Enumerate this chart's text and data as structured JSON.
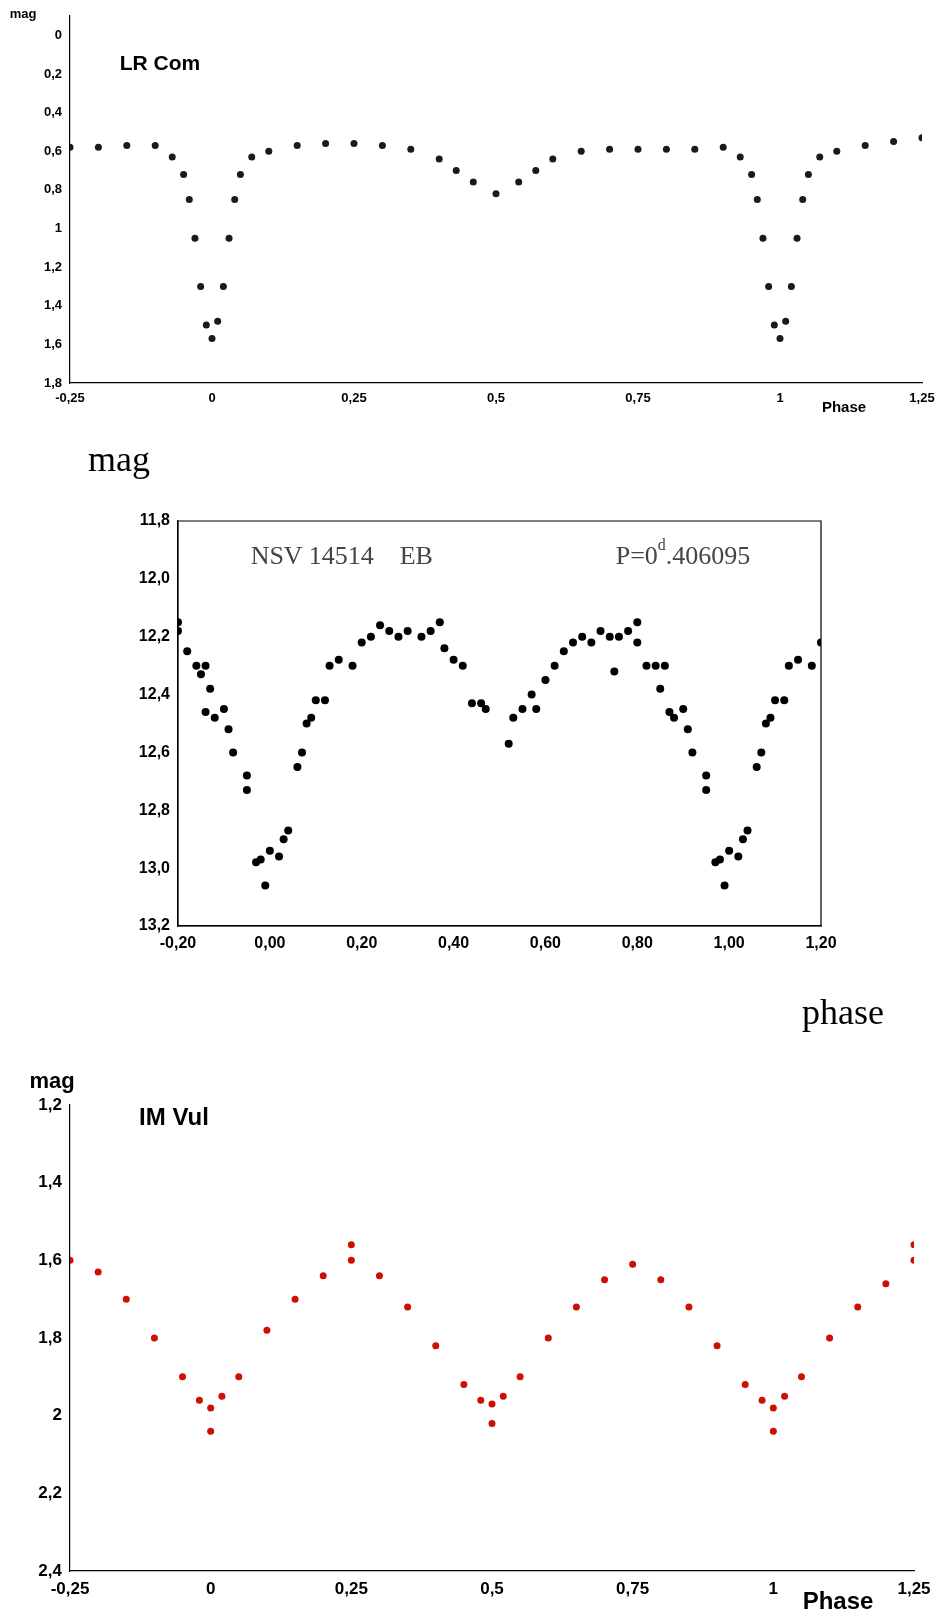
{
  "chart_data": [
    {
      "type": "scatter",
      "title": "LR Com",
      "ylabel": "mag",
      "xlabel": "Phase",
      "marker": "circle",
      "legend": false,
      "xlim": [
        -0.25,
        1.25
      ],
      "xticks": [
        {
          "value": -0.25,
          "label": "-0,25"
        },
        {
          "value": 0,
          "label": "0"
        },
        {
          "value": 0.25,
          "label": "0,25"
        },
        {
          "value": 0.5,
          "label": "0,5"
        },
        {
          "value": 0.75,
          "label": "0,75"
        },
        {
          "value": 1,
          "label": "1"
        },
        {
          "value": 1.25,
          "label": "1,25"
        }
      ],
      "ylim": [
        1.8,
        -0.1
      ],
      "yticks": [
        0,
        {
          "value": 0.2,
          "label": "0,2"
        },
        {
          "value": 0.4,
          "label": "0,4"
        },
        {
          "value": 0.6,
          "label": "0,6"
        },
        {
          "value": 0.8,
          "label": "0,8"
        },
        1,
        {
          "value": 1.2,
          "label": "1,2"
        },
        {
          "value": 1.4,
          "label": "1,4"
        },
        {
          "value": 1.6,
          "label": "1,6"
        },
        {
          "value": 1.8,
          "label": "1,8"
        }
      ],
      "series": [
        {
          "color": "#1a1a1a",
          "x": [
            -0.25,
            -0.2,
            -0.15,
            -0.1,
            -0.07,
            -0.05,
            -0.04,
            -0.03,
            -0.02,
            -0.01,
            0,
            0.01,
            0.02,
            0.03,
            0.04,
            0.05,
            0.07,
            0.1,
            0.15,
            0.2,
            0.25,
            0.3,
            0.35,
            0.4,
            0.43,
            0.46,
            0.5,
            0.54,
            0.57,
            0.6,
            0.65,
            0.7,
            0.75,
            0.8,
            0.85,
            0.9,
            0.93,
            0.95,
            0.96,
            0.97,
            0.98,
            0.99,
            1.0,
            1.01,
            1.02,
            1.03,
            1.04,
            1.05,
            1.07,
            1.1,
            1.15,
            1.2,
            1.25
          ],
          "values": [
            0.58,
            0.58,
            0.57,
            0.57,
            0.63,
            0.72,
            0.85,
            1.05,
            1.3,
            1.5,
            1.57,
            1.48,
            1.3,
            1.05,
            0.85,
            0.72,
            0.63,
            0.6,
            0.57,
            0.56,
            0.56,
            0.57,
            0.59,
            0.64,
            0.7,
            0.76,
            0.82,
            0.76,
            0.7,
            0.64,
            0.6,
            0.59,
            0.59,
            0.59,
            0.59,
            0.58,
            0.63,
            0.72,
            0.85,
            1.05,
            1.3,
            1.5,
            1.57,
            1.48,
            1.3,
            1.05,
            0.85,
            0.72,
            0.63,
            0.6,
            0.57,
            0.55,
            0.53
          ]
        }
      ]
    },
    {
      "type": "scatter",
      "title": "NSV 14514    EB",
      "annotations": [
        "P=0$^{d}$.406095"
      ],
      "ylabel": "mag",
      "xlabel": "phase",
      "marker": "circle",
      "legend": false,
      "xlim": [
        -0.2,
        1.2
      ],
      "xticks": [
        {
          "value": -0.2,
          "label": "-0,20"
        },
        {
          "value": 0,
          "label": "0,00"
        },
        {
          "value": 0.2,
          "label": "0,20"
        },
        {
          "value": 0.4,
          "label": "0,40"
        },
        {
          "value": 0.6,
          "label": "0,60"
        },
        {
          "value": 0.8,
          "label": "0,80"
        },
        {
          "value": 1,
          "label": "1,00"
        },
        {
          "value": 1.2,
          "label": "1,20"
        }
      ],
      "ylim": [
        13.2,
        11.8
      ],
      "yticks": [
        {
          "value": 11.8,
          "label": "11,8"
        },
        {
          "value": 12,
          "label": "12,0"
        },
        {
          "value": 12.2,
          "label": "12,2"
        },
        {
          "value": 12.4,
          "label": "12,4"
        },
        {
          "value": 12.6,
          "label": "12,6"
        },
        {
          "value": 12.8,
          "label": "12,8"
        },
        {
          "value": 13,
          "label": "13,0"
        },
        {
          "value": 13.2,
          "label": "13,2"
        }
      ],
      "series": [
        {
          "color": "#000000",
          "x": [
            -0.2,
            -0.2,
            -0.18,
            -0.16,
            -0.15,
            -0.14,
            -0.13,
            -0.14,
            -0.12,
            -0.1,
            -0.09,
            -0.08,
            -0.05,
            -0.05,
            -0.03,
            -0.02,
            0,
            -0.01,
            0.02,
            0.03,
            0.04,
            0.06,
            0.07,
            0.08,
            0.09,
            0.1,
            0.12,
            0.13,
            0.15,
            0.18,
            0.2,
            0.22,
            0.24,
            0.26,
            0.28,
            0.3,
            0.33,
            0.35,
            0.37,
            0.38,
            0.4,
            0.42,
            0.44,
            0.46,
            0.47,
            0.52,
            0.53,
            0.55,
            0.57,
            0.58,
            0.6,
            0.62,
            0.64,
            0.66,
            0.68,
            0.7,
            0.72,
            0.74,
            0.75,
            0.76,
            0.78,
            0.8,
            0.8,
            0.82,
            0.84,
            0.85,
            0.86,
            0.87,
            0.88,
            0.9,
            0.91,
            0.92,
            0.95,
            0.95,
            0.97,
            0.98,
            1.0,
            0.99,
            1.02,
            1.03,
            1.04,
            1.06,
            1.07,
            1.08,
            1.09,
            1.1,
            1.12,
            1.13,
            1.15,
            1.18,
            1.2
          ],
          "values": [
            12.15,
            12.18,
            12.25,
            12.3,
            12.33,
            12.3,
            12.38,
            12.46,
            12.48,
            12.45,
            12.52,
            12.6,
            12.68,
            12.73,
            12.98,
            12.97,
            12.94,
            13.06,
            12.96,
            12.9,
            12.87,
            12.65,
            12.6,
            12.5,
            12.48,
            12.42,
            12.42,
            12.3,
            12.28,
            12.3,
            12.22,
            12.2,
            12.16,
            12.18,
            12.2,
            12.18,
            12.2,
            12.18,
            12.15,
            12.24,
            12.28,
            12.3,
            12.43,
            12.43,
            12.45,
            12.57,
            12.48,
            12.45,
            12.4,
            12.45,
            12.35,
            12.3,
            12.25,
            12.22,
            12.2,
            12.22,
            12.18,
            12.2,
            12.32,
            12.2,
            12.18,
            12.15,
            12.22,
            12.3,
            12.3,
            12.38,
            12.3,
            12.46,
            12.48,
            12.45,
            12.52,
            12.6,
            12.68,
            12.73,
            12.98,
            12.97,
            12.94,
            13.06,
            12.96,
            12.9,
            12.87,
            12.65,
            12.6,
            12.5,
            12.48,
            12.42,
            12.42,
            12.3,
            12.28,
            12.3,
            12.22
          ]
        }
      ]
    },
    {
      "type": "scatter",
      "title": "IM Vul",
      "ylabel": "mag",
      "xlabel": "Phase",
      "marker": "circle",
      "legend": false,
      "xlim": [
        -0.25,
        1.25
      ],
      "xticks": [
        {
          "value": -0.25,
          "label": "-0,25"
        },
        {
          "value": 0,
          "label": "0"
        },
        {
          "value": 0.25,
          "label": "0,25"
        },
        {
          "value": 0.5,
          "label": "0,5"
        },
        {
          "value": 0.75,
          "label": "0,75"
        },
        {
          "value": 1,
          "label": "1"
        },
        {
          "value": 1.25,
          "label": "1,25"
        }
      ],
      "ylim": [
        2.4,
        1.2
      ],
      "yticks": [
        {
          "value": 1.2,
          "label": "1,2"
        },
        {
          "value": 1.4,
          "label": "1,4"
        },
        {
          "value": 1.6,
          "label": "1,6"
        },
        {
          "value": 1.8,
          "label": "1,8"
        },
        2,
        {
          "value": 2.2,
          "label": "2,2"
        },
        {
          "value": 2.4,
          "label": "2,4"
        }
      ],
      "series": [
        {
          "color": "#cc1100",
          "x": [
            -0.25,
            -0.2,
            -0.15,
            -0.1,
            -0.05,
            -0.02,
            0,
            0,
            0.02,
            0.05,
            0.1,
            0.15,
            0.2,
            0.25,
            0.25,
            0.3,
            0.35,
            0.4,
            0.45,
            0.48,
            0.5,
            0.5,
            0.52,
            0.55,
            0.6,
            0.65,
            0.7,
            0.75,
            0.8,
            0.85,
            0.9,
            0.95,
            0.98,
            1.0,
            1.0,
            1.02,
            1.05,
            1.1,
            1.15,
            1.2,
            1.25,
            1.25
          ],
          "values": [
            1.6,
            1.63,
            1.7,
            1.8,
            1.9,
            1.96,
            1.98,
            2.04,
            1.95,
            1.9,
            1.78,
            1.7,
            1.64,
            1.6,
            1.56,
            1.64,
            1.72,
            1.82,
            1.92,
            1.96,
            1.97,
            2.02,
            1.95,
            1.9,
            1.8,
            1.72,
            1.65,
            1.61,
            1.65,
            1.72,
            1.82,
            1.92,
            1.96,
            1.98,
            2.04,
            1.95,
            1.9,
            1.8,
            1.72,
            1.66,
            1.6,
            1.56
          ]
        }
      ]
    }
  ]
}
